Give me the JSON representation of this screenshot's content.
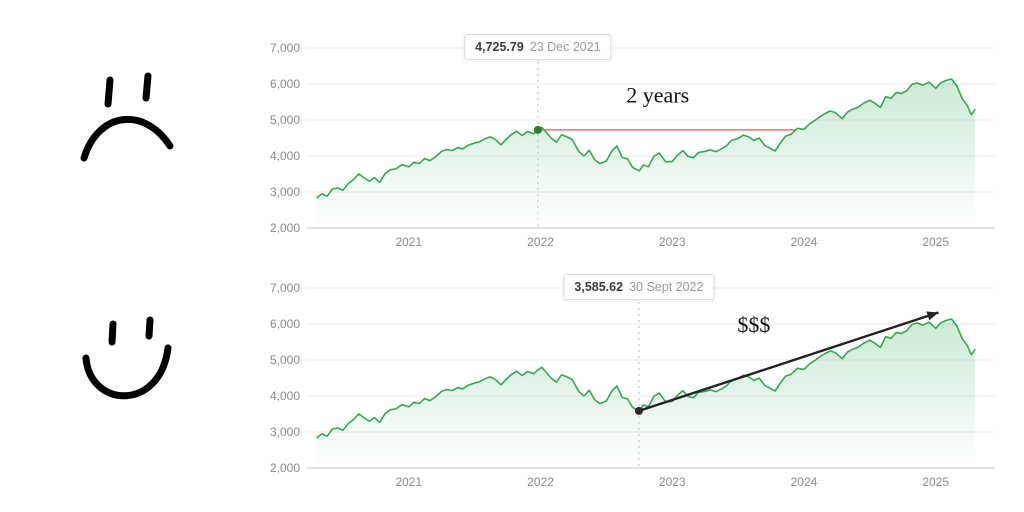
{
  "page": {
    "background": "#ffffff"
  },
  "icons": [
    {
      "name": "sad-face-icon"
    },
    {
      "name": "smiley-face-icon"
    }
  ],
  "chart_data": [
    {
      "id": "top-chart",
      "type": "area",
      "title": "",
      "xlabel": "",
      "ylabel": "",
      "line_color": "#34a853",
      "marker_color": "#2e7d32",
      "grid": true,
      "xlim": [
        2020.25,
        2025.45
      ],
      "ylim": [
        2000,
        7000
      ],
      "yticks": [
        2000,
        3000,
        4000,
        5000,
        6000,
        7000
      ],
      "ytick_labels": [
        "2,000",
        "3,000",
        "4,000",
        "5,000",
        "6,000",
        "7,000"
      ],
      "xticks": [
        2021,
        2022,
        2023,
        2024,
        2025
      ],
      "tooltip": {
        "value": "4,725.79",
        "date": "23 Dec 2021",
        "x": 2021.98,
        "y": 4725.79
      },
      "annotation": {
        "text": "2 years",
        "x": 2022.89,
        "y": 5480
      },
      "red_line": {
        "x1": 2021.98,
        "x2": 2023.93,
        "y": 4725.79
      },
      "x": [
        2020.3,
        2020.34,
        2020.38,
        2020.42,
        2020.46,
        2020.5,
        2020.54,
        2020.58,
        2020.62,
        2020.66,
        2020.7,
        2020.74,
        2020.78,
        2020.82,
        2020.86,
        2020.9,
        2020.95,
        2021.0,
        2021.04,
        2021.08,
        2021.12,
        2021.16,
        2021.2,
        2021.25,
        2021.29,
        2021.33,
        2021.37,
        2021.41,
        2021.45,
        2021.5,
        2021.54,
        2021.58,
        2021.62,
        2021.66,
        2021.7,
        2021.74,
        2021.78,
        2021.82,
        2021.86,
        2021.9,
        2021.95,
        2021.98,
        2022.01,
        2022.04,
        2022.08,
        2022.12,
        2022.16,
        2022.2,
        2022.24,
        2022.29,
        2022.33,
        2022.37,
        2022.41,
        2022.45,
        2022.5,
        2022.54,
        2022.58,
        2022.62,
        2022.66,
        2022.7,
        2022.75,
        2022.78,
        2022.82,
        2022.86,
        2022.9,
        2022.95,
        2023.0,
        2023.04,
        2023.08,
        2023.12,
        2023.16,
        2023.2,
        2023.25,
        2023.29,
        2023.33,
        2023.37,
        2023.41,
        2023.45,
        2023.5,
        2023.54,
        2023.58,
        2023.62,
        2023.66,
        2023.7,
        2023.74,
        2023.78,
        2023.82,
        2023.86,
        2023.9,
        2023.95,
        2024.0,
        2024.04,
        2024.08,
        2024.12,
        2024.16,
        2024.2,
        2024.24,
        2024.29,
        2024.33,
        2024.37,
        2024.41,
        2024.45,
        2024.5,
        2024.54,
        2024.58,
        2024.62,
        2024.66,
        2024.7,
        2024.74,
        2024.78,
        2024.82,
        2024.86,
        2024.9,
        2024.95,
        2025.0,
        2025.04,
        2025.08,
        2025.12,
        2025.16,
        2025.2,
        2025.24,
        2025.27,
        2025.3
      ],
      "values": [
        2830,
        2950,
        2880,
        3080,
        3110,
        3050,
        3230,
        3350,
        3500,
        3400,
        3300,
        3400,
        3270,
        3510,
        3620,
        3640,
        3760,
        3700,
        3830,
        3790,
        3930,
        3870,
        3970,
        4130,
        4180,
        4150,
        4230,
        4200,
        4300,
        4360,
        4400,
        4480,
        4530,
        4450,
        4310,
        4470,
        4600,
        4690,
        4570,
        4680,
        4620,
        4726,
        4796,
        4670,
        4500,
        4380,
        4590,
        4530,
        4460,
        4130,
        4000,
        4160,
        3900,
        3790,
        3860,
        4130,
        4280,
        3960,
        3920,
        3680,
        3586,
        3750,
        3700,
        3990,
        4080,
        3840,
        3850,
        4020,
        4150,
        3990,
        3950,
        4100,
        4130,
        4170,
        4120,
        4190,
        4280,
        4430,
        4490,
        4580,
        4530,
        4430,
        4500,
        4300,
        4220,
        4140,
        4360,
        4550,
        4600,
        4770,
        4740,
        4890,
        4980,
        5090,
        5180,
        5250,
        5200,
        5040,
        5220,
        5300,
        5350,
        5460,
        5550,
        5460,
        5350,
        5650,
        5600,
        5760,
        5740,
        5810,
        5990,
        6030,
        5970,
        6050,
        5880,
        6040,
        6100,
        6140,
        5950,
        5600,
        5400,
        5150,
        5300
      ]
    },
    {
      "id": "bottom-chart",
      "type": "area",
      "title": "",
      "xlabel": "",
      "ylabel": "",
      "line_color": "#34a853",
      "marker_color": "#2b2b2b",
      "grid": true,
      "xlim": [
        2020.25,
        2025.45
      ],
      "ylim": [
        2000,
        7000
      ],
      "yticks": [
        2000,
        3000,
        4000,
        5000,
        6000,
        7000
      ],
      "ytick_labels": [
        "2,000",
        "3,000",
        "4,000",
        "5,000",
        "6,000",
        "7,000"
      ],
      "xticks": [
        2021,
        2022,
        2023,
        2024,
        2025
      ],
      "tooltip": {
        "value": "3,585.62",
        "date": "30 Sept 2022",
        "x": 2022.747,
        "y": 3585.62
      },
      "annotation": {
        "text": "$$$",
        "x": 2023.62,
        "y": 5780
      },
      "arrow": {
        "x1": 2022.747,
        "y1": 3585.62,
        "x2": 2025.02,
        "y2": 6320
      },
      "x": [
        2020.3,
        2020.34,
        2020.38,
        2020.42,
        2020.46,
        2020.5,
        2020.54,
        2020.58,
        2020.62,
        2020.66,
        2020.7,
        2020.74,
        2020.78,
        2020.82,
        2020.86,
        2020.9,
        2020.95,
        2021.0,
        2021.04,
        2021.08,
        2021.12,
        2021.16,
        2021.2,
        2021.25,
        2021.29,
        2021.33,
        2021.37,
        2021.41,
        2021.45,
        2021.5,
        2021.54,
        2021.58,
        2021.62,
        2021.66,
        2021.7,
        2021.74,
        2021.78,
        2021.82,
        2021.86,
        2021.9,
        2021.95,
        2021.98,
        2022.01,
        2022.04,
        2022.08,
        2022.12,
        2022.16,
        2022.2,
        2022.24,
        2022.29,
        2022.33,
        2022.37,
        2022.41,
        2022.45,
        2022.5,
        2022.54,
        2022.58,
        2022.62,
        2022.66,
        2022.7,
        2022.75,
        2022.78,
        2022.82,
        2022.86,
        2022.9,
        2022.95,
        2023.0,
        2023.04,
        2023.08,
        2023.12,
        2023.16,
        2023.2,
        2023.25,
        2023.29,
        2023.33,
        2023.37,
        2023.41,
        2023.45,
        2023.5,
        2023.54,
        2023.58,
        2023.62,
        2023.66,
        2023.7,
        2023.74,
        2023.78,
        2023.82,
        2023.86,
        2023.9,
        2023.95,
        2024.0,
        2024.04,
        2024.08,
        2024.12,
        2024.16,
        2024.2,
        2024.24,
        2024.29,
        2024.33,
        2024.37,
        2024.41,
        2024.45,
        2024.5,
        2024.54,
        2024.58,
        2024.62,
        2024.66,
        2024.7,
        2024.74,
        2024.78,
        2024.82,
        2024.86,
        2024.9,
        2024.95,
        2025.0,
        2025.04,
        2025.08,
        2025.12,
        2025.16,
        2025.2,
        2025.24,
        2025.27,
        2025.3
      ],
      "values": [
        2830,
        2950,
        2880,
        3080,
        3110,
        3050,
        3230,
        3350,
        3500,
        3400,
        3300,
        3400,
        3270,
        3510,
        3620,
        3640,
        3760,
        3700,
        3830,
        3790,
        3930,
        3870,
        3970,
        4130,
        4180,
        4150,
        4230,
        4200,
        4300,
        4360,
        4400,
        4480,
        4530,
        4450,
        4310,
        4470,
        4600,
        4690,
        4570,
        4680,
        4620,
        4726,
        4796,
        4670,
        4500,
        4380,
        4590,
        4530,
        4460,
        4130,
        4000,
        4160,
        3900,
        3790,
        3860,
        4130,
        4280,
        3960,
        3920,
        3680,
        3586,
        3750,
        3700,
        3990,
        4080,
        3840,
        3850,
        4020,
        4150,
        3990,
        3950,
        4100,
        4130,
        4170,
        4120,
        4190,
        4280,
        4430,
        4490,
        4580,
        4530,
        4430,
        4500,
        4300,
        4220,
        4140,
        4360,
        4550,
        4600,
        4770,
        4740,
        4890,
        4980,
        5090,
        5180,
        5250,
        5200,
        5040,
        5220,
        5300,
        5350,
        5460,
        5550,
        5460,
        5350,
        5650,
        5600,
        5760,
        5740,
        5810,
        5990,
        6030,
        5970,
        6050,
        5880,
        6040,
        6100,
        6140,
        5950,
        5600,
        5400,
        5150,
        5300
      ]
    }
  ]
}
